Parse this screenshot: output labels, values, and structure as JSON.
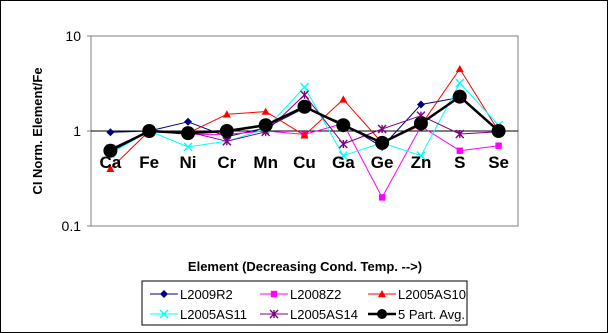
{
  "chart_data": {
    "type": "line",
    "title": "",
    "xlabel": "Element (Decreasing Cond. Temp. -->)",
    "ylabel": "CI Norm. Element/Fe",
    "yscale": "log",
    "ylim": [
      0.1,
      10
    ],
    "yticks": [
      "0.1",
      "1",
      "10"
    ],
    "grid": "horizontal major",
    "legend_position": "bottom",
    "categories": [
      "Ca",
      "Fe",
      "Ni",
      "Cr",
      "Mn",
      "Cu",
      "Ga",
      "Ge",
      "Zn",
      "S",
      "Se"
    ],
    "series": [
      {
        "name": "L2009R2",
        "color": "#000080",
        "marker": "diamond",
        "linewidth": 1,
        "values": [
          0.97,
          1.0,
          1.25,
          0.87,
          1.08,
          1.75,
          1.2,
          0.68,
          1.9,
          2.25,
          1.0
        ]
      },
      {
        "name": "L2008Z2",
        "color": "#FF00FF",
        "marker": "square",
        "linewidth": 1,
        "values": [
          0.62,
          1.0,
          0.92,
          0.92,
          1.0,
          0.92,
          1.2,
          0.2,
          1.12,
          0.62,
          0.7
        ]
      },
      {
        "name": "L2005AS10",
        "color": "#FF0000",
        "marker": "triangle",
        "linewidth": 1,
        "values": [
          0.4,
          1.0,
          0.95,
          1.5,
          1.6,
          0.9,
          2.15,
          0.75,
          1.15,
          4.5,
          1.0
        ]
      },
      {
        "name": "L2005AS11",
        "color": "#00FFFF",
        "marker": "x",
        "linewidth": 1,
        "values": [
          0.58,
          1.0,
          0.68,
          0.78,
          1.05,
          2.9,
          0.55,
          0.75,
          0.55,
          3.2,
          1.15
        ]
      },
      {
        "name": "L2005AS14",
        "color": "#800080",
        "marker": "star",
        "linewidth": 1,
        "values": [
          0.65,
          1.0,
          0.98,
          0.78,
          0.98,
          2.4,
          0.73,
          1.05,
          1.45,
          0.93,
          0.98
        ]
      },
      {
        "name": "5 Part. Avg.",
        "color": "#000000",
        "marker": "circle",
        "linewidth": 2.5,
        "values": [
          0.62,
          1.0,
          0.95,
          1.0,
          1.15,
          1.8,
          1.15,
          0.75,
          1.2,
          2.3,
          1.0
        ]
      }
    ]
  }
}
